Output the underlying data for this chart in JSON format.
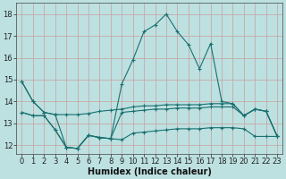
{
  "xlabel": "Humidex (Indice chaleur)",
  "x": [
    0,
    1,
    2,
    3,
    4,
    5,
    6,
    7,
    8,
    9,
    10,
    11,
    12,
    13,
    14,
    15,
    16,
    17,
    18,
    19,
    20,
    21,
    22,
    23
  ],
  "line1": [
    14.9,
    14.0,
    13.5,
    13.4,
    11.9,
    11.85,
    12.45,
    12.35,
    12.3,
    14.8,
    15.9,
    17.2,
    17.5,
    18.0,
    17.2,
    16.6,
    15.5,
    16.65,
    14.0,
    13.9,
    13.35,
    13.65,
    13.55,
    12.4
  ],
  "line2": [
    14.9,
    14.0,
    13.5,
    13.4,
    13.4,
    13.4,
    13.45,
    13.55,
    13.6,
    13.65,
    13.75,
    13.8,
    13.8,
    13.85,
    13.85,
    13.85,
    13.85,
    13.9,
    13.9,
    13.9,
    13.35,
    13.65,
    13.55,
    12.4
  ],
  "line3": [
    13.5,
    13.35,
    13.35,
    12.7,
    11.9,
    11.85,
    12.45,
    12.35,
    12.3,
    13.5,
    13.55,
    13.6,
    13.65,
    13.65,
    13.7,
    13.7,
    13.7,
    13.75,
    13.75,
    13.75,
    13.35,
    13.65,
    13.55,
    12.4
  ],
  "line4": [
    13.5,
    13.35,
    13.35,
    12.7,
    11.9,
    11.85,
    12.45,
    12.35,
    12.3,
    12.25,
    12.55,
    12.6,
    12.65,
    12.7,
    12.75,
    12.75,
    12.75,
    12.8,
    12.8,
    12.8,
    12.75,
    12.4,
    12.4,
    12.4
  ],
  "line_color": "#1a7070",
  "bg_color": "#bde0e0",
  "grid_color": "#c8a0a0",
  "ylim": [
    11.6,
    18.5
  ],
  "yticks": [
    12,
    13,
    14,
    15,
    16,
    17,
    18
  ],
  "xticks": [
    0,
    1,
    2,
    3,
    4,
    5,
    6,
    7,
    8,
    9,
    10,
    11,
    12,
    13,
    14,
    15,
    16,
    17,
    18,
    19,
    20,
    21,
    22,
    23
  ],
  "xlabel_fontsize": 7.0,
  "tick_fontsize": 6.0
}
